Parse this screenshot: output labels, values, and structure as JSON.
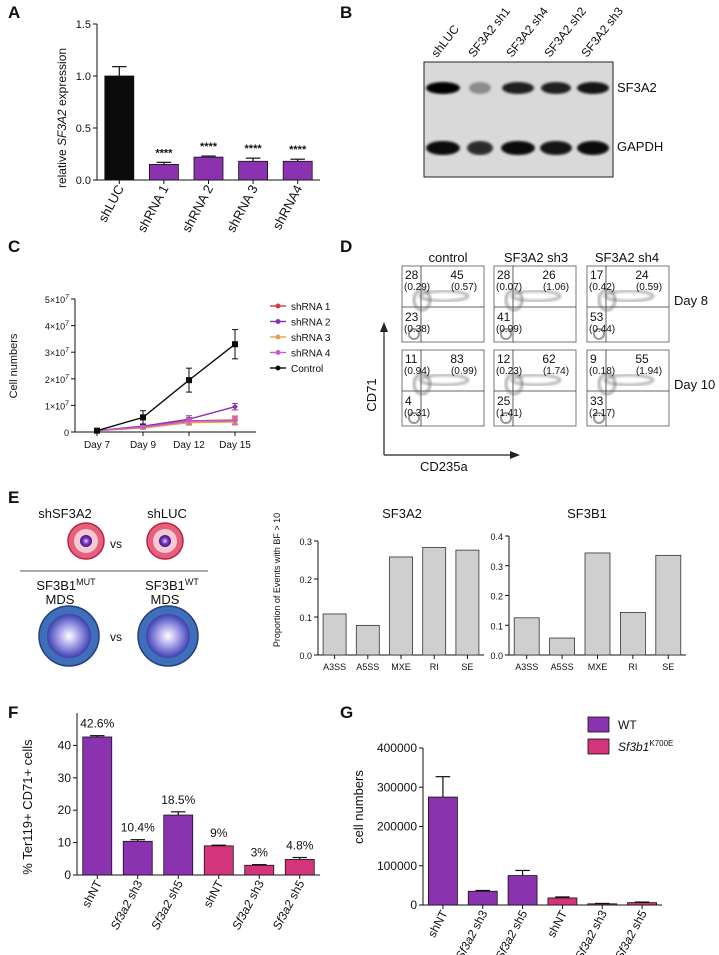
{
  "colors": {
    "purple": "#8b32b1",
    "black": "#0b0b0b",
    "magenta": "#d4357a",
    "grey": "#cfcfcf",
    "shRNA1": "#cf3b47",
    "shRNA2": "#8b32b1",
    "shRNA3": "#e5a24a",
    "shRNA4": "#c45fd1",
    "blot_bg": "#d9d9d9"
  },
  "panels": {
    "A": "A",
    "B": "B",
    "C": "C",
    "D": "D",
    "E": "E",
    "F": "F",
    "G": "G"
  },
  "chart_data": [
    {
      "id": "A",
      "type": "bar",
      "ylabel_pre": "relative ",
      "ylabel_it": "SF3A2",
      "ylabel_post": " expression",
      "categories": [
        "shLUC",
        "shRNA 1",
        "shRNA 2",
        "shRNA 3",
        "shRNA4"
      ],
      "values": [
        1.0,
        0.15,
        0.22,
        0.18,
        0.18
      ],
      "errors": [
        0.09,
        0.02,
        0.01,
        0.03,
        0.02
      ],
      "ylim": [
        0,
        1.5
      ],
      "yticks": [
        "0.0",
        "0.5",
        "1.0",
        "1.5"
      ],
      "annotations": [
        "",
        "****",
        "****",
        "****",
        "****"
      ]
    },
    {
      "id": "C",
      "type": "line",
      "ylabel": "Cell numbers",
      "x": [
        "Day 7",
        "Day 9",
        "Day 12",
        "Day 15"
      ],
      "yticks": [
        "0",
        "1×10",
        "2×10",
        "3×10",
        "4×10",
        "5×10"
      ],
      "ytick_exp": "7",
      "ylim": [
        0,
        50000000
      ],
      "series": [
        {
          "name": "shRNA 1",
          "values": [
            500000,
            2000000,
            4200000,
            4500000
          ],
          "errors": [
            200000,
            600000,
            1200000,
            1500000
          ]
        },
        {
          "name": "shRNA 2",
          "values": [
            500000,
            2200000,
            4800000,
            9500000
          ],
          "errors": [
            200000,
            500000,
            1300000,
            1200000
          ]
        },
        {
          "name": "shRNA 3",
          "values": [
            500000,
            1500000,
            3500000,
            3800000
          ],
          "errors": [
            200000,
            400000,
            1000000,
            1200000
          ]
        },
        {
          "name": "shRNA 4",
          "values": [
            500000,
            1800000,
            4000000,
            4200000
          ],
          "errors": [
            200000,
            500000,
            1100000,
            1300000
          ]
        },
        {
          "name": "Control",
          "values": [
            500000,
            5500000,
            19500000,
            33000000
          ],
          "errors": [
            300000,
            2500000,
            4500000,
            5500000
          ]
        }
      ]
    },
    {
      "id": "E1",
      "type": "bar",
      "title": "SF3A2",
      "ylabel": "Proportion of Events with BF > 10",
      "categories": [
        "A3SS",
        "A5SS",
        "MXE",
        "RI",
        "SE"
      ],
      "values": [
        0.108,
        0.078,
        0.258,
        0.283,
        0.276
      ],
      "ylim": [
        0,
        0.3
      ],
      "yticks": [
        "0.0",
        "0.1",
        "0.2",
        "0.3"
      ]
    },
    {
      "id": "E2",
      "type": "bar",
      "title": "SF3B1",
      "categories": [
        "A3SS",
        "A5SS",
        "MXE",
        "RI",
        "SE"
      ],
      "values": [
        0.125,
        0.057,
        0.343,
        0.143,
        0.335
      ],
      "ylim": [
        0,
        0.4
      ],
      "yticks": [
        "0.0",
        "0.1",
        "0.2",
        "0.3",
        "0.4"
      ]
    },
    {
      "id": "F",
      "type": "bar",
      "ylabel": "% Ter119+ CD71+ cells",
      "categories": [
        "shNT",
        "Sf3a2 sh3",
        "Sf3a2 sh5",
        "shNT",
        "Sf3a2 sh3",
        "Sf3a2 sh5"
      ],
      "values": [
        42.6,
        10.4,
        18.5,
        9,
        3,
        4.8
      ],
      "errors": [
        0.4,
        0.5,
        1.0,
        0.2,
        0.2,
        0.6
      ],
      "labels": [
        "42.6%",
        "10.4%",
        "18.5%",
        "9%",
        "3%",
        "4.8%"
      ],
      "ylim": [
        0,
        50
      ],
      "yticks": [
        "0",
        "10",
        "20",
        "30",
        "40"
      ]
    },
    {
      "id": "G",
      "type": "bar",
      "ylabel": "cell numbers",
      "categories": [
        "shNT",
        "Sf3a2 sh3",
        "Sf3a2 sh5",
        "shNT",
        "Sf3a2 sh3",
        "Sf3a2 sh5"
      ],
      "values": [
        275000,
        35000,
        75000,
        18000,
        3000,
        6000
      ],
      "errors": [
        52000,
        2000,
        13000,
        2500,
        1000,
        1500
      ],
      "ylim": [
        0,
        400000
      ],
      "yticks": [
        "0",
        "100000",
        "200000",
        "300000",
        "400000"
      ],
      "legend": [
        {
          "name": "WT"
        },
        {
          "name": "Sf3b1",
          "sup": "K700E"
        }
      ]
    }
  ],
  "blot": {
    "lanes": [
      "shLUC",
      "SF3A2 sh1",
      "SF3A2 sh4",
      "SF3A2 sh2",
      "SF3A2 sh3"
    ],
    "bands": [
      "SF3A2",
      "GAPDH"
    ]
  },
  "flow": {
    "columns": [
      "control",
      "SF3A2 sh3",
      "SF3A2 sh4"
    ],
    "rows": [
      "Day 8",
      "Day 10"
    ],
    "xlabel": "CD235a",
    "ylabel": "CD71",
    "quadrants": [
      [
        {
          "ul": "28",
          "ulp": "(0.29)",
          "ur": "45",
          "urp": "(0.57)",
          "ll": "23",
          "llp": "(0.38)"
        },
        {
          "ul": "28",
          "ulp": "(0.07)",
          "ur": "26",
          "urp": "(1.06)",
          "ll": "41",
          "llp": "(0.99)"
        },
        {
          "ul": "17",
          "ulp": "(0.42)",
          "ur": "24",
          "urp": "(0.59)",
          "ll": "53",
          "llp": "(0.44)"
        }
      ],
      [
        {
          "ul": "11",
          "ulp": "(0.94)",
          "ur": "83",
          "urp": "(0.99)",
          "ll": "4",
          "llp": "(0.31)"
        },
        {
          "ul": "12",
          "ulp": "(0.23)",
          "ur": "62",
          "urp": "(1.74)",
          "ll": "25",
          "llp": "(1.41)"
        },
        {
          "ul": "9",
          "ulp": "(0.18)",
          "ur": "55",
          "urp": "(1.94)",
          "ll": "33",
          "llp": "(2.17)"
        }
      ]
    ]
  },
  "schematic": {
    "top_left": "shSF3A2",
    "top_right": "shLUC",
    "vs": "vs",
    "bottom_left_1": "SF3B1",
    "bottom_left_sup": "MUT",
    "bottom_left_2": "MDS",
    "bottom_right_1": "SF3B1",
    "bottom_right_sup": "WT",
    "bottom_right_2": "MDS"
  }
}
